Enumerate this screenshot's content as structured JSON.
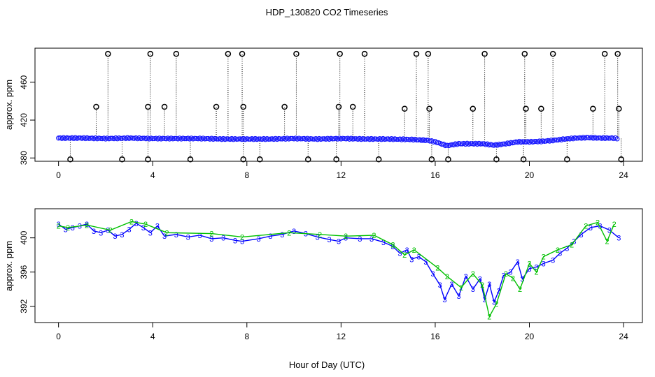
{
  "title": "HDP_130820  CO2 Timeseries",
  "xlabel": "Hour of Day (UTC)",
  "chart_data": [
    {
      "type": "scatter",
      "ylabel": "approx. ppm",
      "xlim": [
        -1,
        24.8
      ],
      "ylim": [
        376.5,
        496
      ],
      "x_ticks": [
        "0",
        "4",
        "8",
        "12",
        "16",
        "20",
        "24"
      ],
      "x_tick_values": [
        0,
        4,
        8,
        12,
        16,
        20,
        24
      ],
      "y_ticks": [
        "380",
        "420",
        "460"
      ],
      "y_tick_values": [
        380,
        420,
        460
      ],
      "baseline": [
        [
          0,
          401
        ],
        [
          1,
          401
        ],
        [
          2,
          400.5
        ],
        [
          3,
          401
        ],
        [
          4,
          400.5
        ],
        [
          5,
          400.5
        ],
        [
          6,
          400.5
        ],
        [
          7,
          400
        ],
        [
          8,
          400
        ],
        [
          9,
          400
        ],
        [
          10,
          400.5
        ],
        [
          11,
          400
        ],
        [
          12,
          400.5
        ],
        [
          13,
          400
        ],
        [
          14,
          400
        ],
        [
          15,
          399.5
        ],
        [
          15.7,
          398.5
        ],
        [
          16,
          397
        ],
        [
          16.5,
          393
        ],
        [
          17,
          395
        ],
        [
          17.5,
          395
        ],
        [
          18,
          395
        ],
        [
          18.5,
          393.5
        ],
        [
          19,
          395
        ],
        [
          19.5,
          397
        ],
        [
          20,
          397
        ],
        [
          20.5,
          397.5
        ],
        [
          21,
          398.5
        ],
        [
          21.5,
          400
        ],
        [
          22,
          401
        ],
        [
          22.5,
          401.5
        ],
        [
          23,
          401
        ],
        [
          23.5,
          401
        ],
        [
          23.8,
          400.5
        ]
      ],
      "spikes": [
        [
          1.6,
          434
        ],
        [
          2.1,
          490
        ],
        [
          3.8,
          434
        ],
        [
          3.9,
          490
        ],
        [
          4.5,
          434
        ],
        [
          5.0,
          490
        ],
        [
          6.7,
          434
        ],
        [
          7.2,
          490
        ],
        [
          7.8,
          490
        ],
        [
          7.85,
          434
        ],
        [
          9.6,
          434
        ],
        [
          10.1,
          490
        ],
        [
          11.9,
          434
        ],
        [
          11.95,
          490
        ],
        [
          12.5,
          434
        ],
        [
          13.0,
          490
        ],
        [
          14.7,
          432
        ],
        [
          15.2,
          490
        ],
        [
          15.7,
          490
        ],
        [
          15.75,
          432
        ],
        [
          17.6,
          432
        ],
        [
          18.1,
          490
        ],
        [
          19.8,
          490
        ],
        [
          19.85,
          432
        ],
        [
          20.5,
          432
        ],
        [
          21.0,
          490
        ],
        [
          22.7,
          432
        ],
        [
          23.2,
          490
        ],
        [
          23.75,
          490
        ],
        [
          23.8,
          432
        ]
      ],
      "dips": [
        0.5,
        2.7,
        3.8,
        5.6,
        7.85,
        8.55,
        10.6,
        11.8,
        13.6,
        15.85,
        16.55,
        18.6,
        19.75,
        21.6,
        23.9
      ]
    },
    {
      "type": "line",
      "ylabel": "approx. ppm",
      "xlim": [
        -1,
        24.8
      ],
      "ylim": [
        390.1,
        403.4
      ],
      "x_ticks": [
        "0",
        "4",
        "8",
        "12",
        "16",
        "20",
        "24"
      ],
      "x_tick_values": [
        0,
        4,
        8,
        12,
        16,
        20,
        24
      ],
      "y_ticks": [
        "392",
        "396",
        "400"
      ],
      "y_tick_values": [
        392,
        396,
        400
      ],
      "series": [
        {
          "label_char": "3",
          "color": "#0000ff",
          "points": [
            [
              0,
              401.6
            ],
            [
              0.3,
              401
            ],
            [
              0.6,
              401.2
            ],
            [
              0.9,
              401.4
            ],
            [
              1.2,
              401.6
            ],
            [
              1.5,
              400.8
            ],
            [
              1.8,
              400.6
            ],
            [
              2.1,
              400.9
            ],
            [
              2.4,
              400.2
            ],
            [
              2.7,
              400.4
            ],
            [
              3.0,
              401
            ],
            [
              3.3,
              401.7
            ],
            [
              3.6,
              401.2
            ],
            [
              3.9,
              400.6
            ],
            [
              4.2,
              401.4
            ],
            [
              4.5,
              400.2
            ],
            [
              5.0,
              400.4
            ],
            [
              5.5,
              400.1
            ],
            [
              6.0,
              400.3
            ],
            [
              6.5,
              399.9
            ],
            [
              7.0,
              400
            ],
            [
              7.5,
              399.7
            ],
            [
              7.8,
              399.6
            ],
            [
              8.5,
              399.9
            ],
            [
              9.0,
              400.2
            ],
            [
              9.5,
              400.4
            ],
            [
              10.0,
              400.8
            ],
            [
              10.5,
              400.5
            ],
            [
              11.0,
              400.1
            ],
            [
              11.5,
              399.8
            ],
            [
              11.9,
              399.6
            ],
            [
              12.2,
              400
            ],
            [
              12.8,
              399.9
            ],
            [
              13.3,
              399.9
            ],
            [
              13.8,
              399.5
            ],
            [
              14.2,
              399
            ],
            [
              14.5,
              398.2
            ],
            [
              14.8,
              398.6
            ],
            [
              15.0,
              397.5
            ],
            [
              15.3,
              397.8
            ],
            [
              15.6,
              397.2
            ],
            [
              15.9,
              395.8
            ],
            [
              16.2,
              394.5
            ],
            [
              16.4,
              392.8
            ],
            [
              16.7,
              394.6
            ],
            [
              17.0,
              393.2
            ],
            [
              17.3,
              395.5
            ],
            [
              17.6,
              394
            ],
            [
              17.9,
              395.2
            ],
            [
              18.1,
              392.8
            ],
            [
              18.3,
              394.6
            ],
            [
              18.5,
              392.5
            ],
            [
              18.7,
              393.8
            ],
            [
              18.9,
              395.6
            ],
            [
              19.2,
              396
            ],
            [
              19.5,
              397.2
            ],
            [
              19.7,
              395.2
            ],
            [
              20.0,
              396.4
            ],
            [
              20.3,
              396.6
            ],
            [
              20.6,
              397
            ],
            [
              21.0,
              397.4
            ],
            [
              21.3,
              398.2
            ],
            [
              21.6,
              398.8
            ],
            [
              21.9,
              399.6
            ],
            [
              22.2,
              400.4
            ],
            [
              22.6,
              401.2
            ],
            [
              23.0,
              401.4
            ],
            [
              23.4,
              400.9
            ],
            [
              23.8,
              400
            ]
          ]
        },
        {
          "label_char": "2",
          "color": "#00c000",
          "points": [
            [
              0,
              401.4
            ],
            [
              0.4,
              401.2
            ],
            [
              1.2,
              401.5
            ],
            [
              2.2,
              400.9
            ],
            [
              3.1,
              401.9
            ],
            [
              3.7,
              401.6
            ],
            [
              4.6,
              400.6
            ],
            [
              6.5,
              400.5
            ],
            [
              7.8,
              400.1
            ],
            [
              9.8,
              400.6
            ],
            [
              11.1,
              400.4
            ],
            [
              12.2,
              400.2
            ],
            [
              13.4,
              400.3
            ],
            [
              14.2,
              399.2
            ],
            [
              14.7,
              398
            ],
            [
              15.1,
              398.6
            ],
            [
              16.1,
              396.5
            ],
            [
              16.5,
              395.5
            ],
            [
              17.1,
              394.2
            ],
            [
              17.6,
              395.8
            ],
            [
              18.0,
              394.5
            ],
            [
              18.3,
              390.8
            ],
            [
              18.6,
              392.3
            ],
            [
              19.0,
              395.8
            ],
            [
              19.3,
              395.3
            ],
            [
              19.6,
              394
            ],
            [
              20.0,
              397
            ],
            [
              20.3,
              396
            ],
            [
              20.6,
              397.8
            ],
            [
              21.2,
              398.6
            ],
            [
              21.8,
              399.2
            ],
            [
              22.4,
              401.4
            ],
            [
              22.9,
              401.8
            ],
            [
              23.3,
              399.6
            ],
            [
              23.6,
              401.6
            ]
          ]
        }
      ]
    }
  ]
}
